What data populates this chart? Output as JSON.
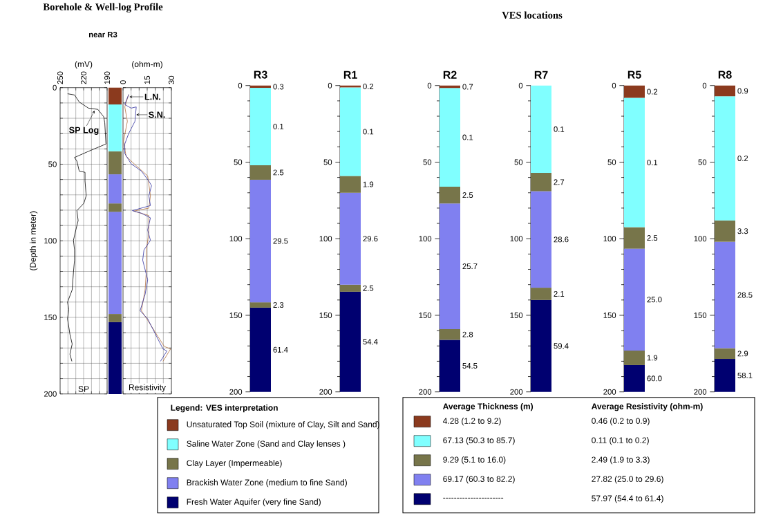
{
  "chart_data": [
    {
      "type": "line",
      "title": "Borehole & Well-log Profile",
      "subtitle": "near R3",
      "xlabel": "(mV)",
      "ylabel": "(Depth in meter)",
      "xlim": [
        250,
        190
      ],
      "xticks": [
        250,
        {
          "value": 240,
          "label": null
        },
        {
          "value": 230,
          "label": null
        },
        220,
        {
          "value": 210,
          "label": null
        },
        {
          "value": 200,
          "label": null
        },
        190
      ],
      "ylim": [
        200,
        0
      ],
      "yticks": [
        0,
        {
          "value": 10,
          "label": null
        },
        {
          "value": 20,
          "label": null
        },
        {
          "value": 30,
          "label": null
        },
        {
          "value": 40,
          "label": null
        },
        50,
        {
          "value": 60,
          "label": null
        },
        {
          "value": 70,
          "label": null
        },
        {
          "value": 80,
          "label": null
        },
        {
          "value": 90,
          "label": null
        },
        100,
        {
          "value": 110,
          "label": null
        },
        {
          "value": 120,
          "label": null
        },
        {
          "value": 130,
          "label": null
        },
        {
          "value": 140,
          "label": null
        },
        150,
        {
          "value": 160,
          "label": null
        },
        {
          "value": 170,
          "label": null
        },
        {
          "value": 180,
          "label": null
        },
        {
          "value": 190,
          "label": null
        },
        200
      ],
      "grid": true,
      "series": [
        {
          "color": "#000000",
          "x": [
            240.5,
            231.6,
            225.6,
            213.8,
            201.9,
            194.4,
            193,
            191.5,
            213.8,
            231.6,
            228.6,
            225.6,
            218.2,
            218.2,
            216.7,
            219.7,
            228.6,
            227,
            230,
            233,
            231.6,
            231.6,
            233,
            234.6,
            240.5,
            239,
            240.5,
            237.5,
            234.6,
            237.5,
            235
          ],
          "values": [
            4,
            4.8,
            9.4,
            13.4,
            14.2,
            19,
            23,
            36.8,
            41.6,
            45.6,
            48,
            54.5,
            55.3,
            61,
            70.6,
            75.5,
            80.3,
            86.8,
            93,
            99.7,
            106,
            112.6,
            120.6,
            132,
            140,
            144.8,
            151,
            161,
            167.4,
            174,
            178.7
          ]
        }
      ],
      "annotations": [
        {
          "text": "SP Log",
          "x": 206,
          "y": 15
        },
        "SP"
      ]
    },
    {
      "type": "bar",
      "stacked": true,
      "categories": [
        null
      ],
      "ylim": [
        200,
        0
      ],
      "tick_labels": false,
      "series": [
        {
          "color": "#8b3a1e",
          "values": [
            11
          ]
        },
        {
          "color": "#80ffff",
          "values": [
            30.6
          ]
        },
        {
          "color": "#77754a",
          "values": [
            15
          ]
        },
        {
          "color": "#8080f0",
          "values": [
            19
          ]
        },
        {
          "color": "#77754a",
          "values": [
            5.5
          ]
        },
        {
          "color": "#8080f0",
          "values": [
            66.7
          ]
        },
        {
          "color": "#77754a",
          "values": [
            5.3
          ]
        },
        {
          "color": "#000070",
          "values": [
            47
          ]
        }
      ]
    },
    {
      "type": "line",
      "xlabel": "(ohm-m)",
      "xlim": [
        0,
        30
      ],
      "xticks": [
        0,
        {
          "value": 5,
          "label": null
        },
        {
          "value": 10,
          "label": null
        },
        15,
        {
          "value": 20,
          "label": null
        },
        {
          "value": 25,
          "label": null
        },
        30
      ],
      "ylim": [
        200,
        0
      ],
      "yticks": [
        0,
        10,
        20,
        30,
        40,
        50,
        60,
        70,
        80,
        90,
        100,
        110,
        120,
        130,
        140,
        150,
        160,
        170,
        180,
        190,
        200
      ],
      "grid": true,
      "tick_labels": "x",
      "series": [
        {
          "color": "#b07040",
          "x": [
            3.5,
            1.1,
            2.7,
            0.3,
            1.9,
            8.2,
            15.3,
            17,
            16,
            6.6,
            16,
            16,
            14.5,
            14.5,
            13.7,
            11.4,
            16,
            21.7,
            25.6,
            29.5,
            24.8
          ],
          "values": [
            4.5,
            12.6,
            22,
            35,
            44.8,
            51,
            57.7,
            70.6,
            78.7,
            80.6,
            83.5,
            95,
            106,
            119,
            132,
            145.6,
            153,
            162.6,
            169,
            170.6,
            178.7
          ]
        },
        {
          "color": "#3030a0",
          "x": [
            3.5,
            1.1,
            5,
            8.2,
            7.4,
            3.5,
            1.1,
            1.1,
            5,
            11.4,
            16,
            17.7,
            16,
            17,
            5.8,
            11.4,
            17,
            15.3,
            17,
            13,
            12.2,
            15.3,
            13.7,
            10.6,
            15.3,
            20.9,
            24.8,
            27.2,
            23.2
          ],
          "values": [
            4.5,
            11,
            13.4,
            12.6,
            22,
            30,
            36.8,
            43,
            49.7,
            54.5,
            61,
            64,
            70.6,
            77,
            80.3,
            82,
            85,
            93,
            99.7,
            106,
            112.6,
            125.5,
            135,
            145.6,
            151,
            162.6,
            170.6,
            172,
            178.7
          ]
        }
      ],
      "annotations": [
        {
          "text": "L.N.",
          "x": 4,
          "y": 6
        },
        {
          "text": "S.N.",
          "x": 8.2,
          "y": 17.7
        },
        "Resistivity"
      ]
    },
    {
      "type": "other",
      "title": "VES locations"
    },
    {
      "type": "bar",
      "stacked": true,
      "categories": [
        "R3"
      ],
      "ylim": [
        200,
        0
      ],
      "yticks": [
        0,
        50,
        100,
        150,
        200
      ],
      "series": [
        {
          "color": "#8b3a1e",
          "values": [
            1.5
          ]
        },
        {
          "color": "#80ffff",
          "values": [
            50.5
          ]
        },
        {
          "color": "#77754a",
          "values": [
            9.5
          ]
        },
        {
          "color": "#8080f0",
          "values": [
            80
          ]
        },
        {
          "color": "#77754a",
          "values": [
            3.5
          ]
        },
        {
          "color": "#000070",
          "values": [
            55
          ]
        }
      ],
      "annotations": [
        "0.3",
        "0.1",
        "2.5",
        "29.5",
        "2.3",
        "61.4"
      ]
    },
    {
      "type": "bar",
      "stacked": true,
      "categories": [
        "R1"
      ],
      "ylim": [
        200,
        0
      ],
      "yticks": [
        0,
        50,
        100,
        150,
        200
      ],
      "series": [
        {
          "color": "#8b3a1e",
          "values": [
            1.2
          ]
        },
        {
          "color": "#80ffff",
          "values": [
            57.8
          ]
        },
        {
          "color": "#77754a",
          "values": [
            11
          ]
        },
        {
          "color": "#8080f0",
          "values": [
            60
          ]
        },
        {
          "color": "#77754a",
          "values": [
            4.6
          ]
        },
        {
          "color": "#000070",
          "values": [
            65.4
          ]
        }
      ],
      "annotations": [
        "0.2",
        "0.1",
        "1.9",
        "29.6",
        "2.5",
        "54.4"
      ]
    },
    {
      "type": "bar",
      "stacked": true,
      "categories": [
        "R2"
      ],
      "ylim": [
        200,
        0
      ],
      "yticks": [
        0,
        50,
        100,
        150,
        200
      ],
      "series": [
        {
          "color": "#8b3a1e",
          "values": [
            1.6
          ]
        },
        {
          "color": "#80ffff",
          "values": [
            64.4
          ]
        },
        {
          "color": "#77754a",
          "values": [
            11
          ]
        },
        {
          "color": "#8080f0",
          "values": [
            82
          ]
        },
        {
          "color": "#77754a",
          "values": [
            7
          ]
        },
        {
          "color": "#000070",
          "values": [
            34
          ]
        }
      ],
      "annotations": [
        "0.7",
        "0.1",
        "2.5",
        "25.7",
        "2.8",
        "54.5"
      ]
    },
    {
      "type": "bar",
      "stacked": true,
      "categories": [
        "R7"
      ],
      "ylim": [
        200,
        0
      ],
      "yticks": [
        0,
        50,
        100,
        150,
        200
      ],
      "series": [
        {
          "color": "#80ffff",
          "values": [
            57
          ]
        },
        {
          "color": "#77754a",
          "values": [
            12
          ]
        },
        {
          "color": "#8080f0",
          "values": [
            63
          ]
        },
        {
          "color": "#77754a",
          "values": [
            8
          ]
        },
        {
          "color": "#000070",
          "values": [
            60
          ]
        }
      ],
      "annotations": [
        "0.1",
        "2.7",
        "28.6",
        "2.1",
        "59.4"
      ]
    },
    {
      "type": "bar",
      "stacked": true,
      "categories": [
        "R5"
      ],
      "ylim": [
        200,
        0
      ],
      "yticks": [
        0,
        50,
        100,
        150,
        200
      ],
      "series": [
        {
          "color": "#8b3a1e",
          "values": [
            8
          ]
        },
        {
          "color": "#80ffff",
          "values": [
            84.5
          ]
        },
        {
          "color": "#77754a",
          "values": [
            14
          ]
        },
        {
          "color": "#8080f0",
          "values": [
            66.5
          ]
        },
        {
          "color": "#77754a",
          "values": [
            9.5
          ]
        },
        {
          "color": "#000070",
          "values": [
            17.5
          ]
        }
      ],
      "annotations": [
        "0.2",
        "0.1",
        "2.5",
        "25.0",
        "1.9",
        "60.0"
      ]
    },
    {
      "type": "bar",
      "stacked": true,
      "categories": [
        "R8"
      ],
      "ylim": [
        200,
        0
      ],
      "yticks": [
        0,
        50,
        100,
        150,
        200
      ],
      "series": [
        {
          "color": "#8b3a1e",
          "values": [
            7
          ]
        },
        {
          "color": "#80ffff",
          "values": [
            81
          ]
        },
        {
          "color": "#77754a",
          "values": [
            14
          ]
        },
        {
          "color": "#8080f0",
          "values": [
            69.5
          ]
        },
        {
          "color": "#77754a",
          "values": [
            7
          ]
        },
        {
          "color": "#000070",
          "values": [
            21.5
          ]
        }
      ],
      "annotations": [
        "0.9",
        "0.2",
        "3.3",
        "28.5",
        "2.9",
        "58.1"
      ]
    },
    {
      "type": "other",
      "legend_title": "Legend: VES interpretation",
      "categories": [
        "Unsaturated Top Soil (mixture of Clay, Silt and Sand)",
        "Saline Water Zone (Sand and Clay lenses )",
        "Clay Layer (Impermeable)",
        "Brackish Water Zone (medium to fine Sand)",
        "Fresh Water Aquifer (very fine Sand)"
      ],
      "colors": [
        "#8b3a1e",
        "#80ffff",
        "#77754a",
        "#8080f0",
        "#000070"
      ]
    },
    {
      "type": "other",
      "categories": [
        "Average Thickness (m)",
        "Average Resistivity (ohm-m)"
      ],
      "colors": [
        "#8b3a1e",
        "#80ffff",
        "#77754a",
        "#8080f0",
        "#000070"
      ],
      "annotations": [
        "4.28 (1.2 to 9.2)",
        "0.46 (0.2 to 0.9)",
        "67.13 (50.3 to 85.7)",
        "0.11 (0.1 to 0.2)",
        "9.29 (5.1 to 16.0)",
        "2.49 (1.9 to 3.3)",
        "69.17 (60.3 to 82.2)",
        "27.82 (25.0 to 29.6)",
        "----------------------",
        "57.97 (54.4 to 61.4)"
      ]
    }
  ]
}
